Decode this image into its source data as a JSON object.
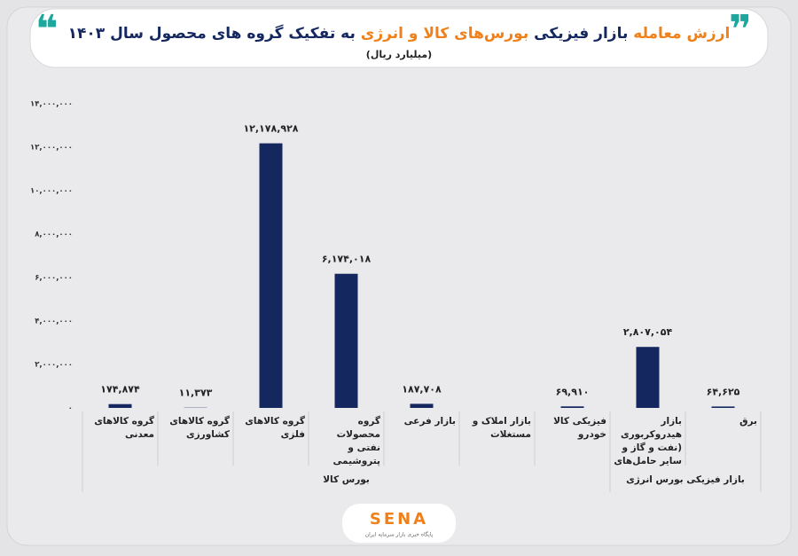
{
  "chart_data": {
    "type": "bar",
    "title_parts": [
      "ارزش معامله",
      "بازار فیزیکی",
      "بورس‌های کالا و انرژی",
      "به تفکیک گروه های محصول سال ۱۴۰۳"
    ],
    "subtitle": "(میلیارد ریال)",
    "categories": [
      "گروه کالاهای معدنی",
      "گروه کالاهای کشاورزی",
      "گروه کالاهای فلزی",
      "گروه محصولات نفتی و پتروشیمی",
      "بازار فرعی",
      "بازار املاک و مستغلات",
      "فیزیکی کالا خودرو",
      "بازار هیدروکربوری (نفت و گاز و سایر حامل‌های انرژی)",
      "برق"
    ],
    "values": [
      174874,
      11373,
      12178928,
      6174018,
      187708,
      null,
      69910,
      2807054,
      64625
    ],
    "value_labels": [
      "۱۷۴,۸۷۴",
      "۱۱,۳۷۳",
      "۱۲,۱۷۸,۹۲۸",
      "۶,۱۷۴,۰۱۸",
      "۱۸۷,۷۰۸",
      null,
      "۶۹,۹۱۰",
      "۲,۸۰۷,۰۵۴",
      "۶۴,۶۲۵"
    ],
    "color": "#14275f",
    "groups": [
      "بورس کالا",
      "بازار فیزیکی بورس انرژی"
    ],
    "ylim": [
      0,
      14000000
    ],
    "yticks": [
      {
        "value": 0,
        "label": "۰"
      },
      {
        "value": 2000000,
        "label": "۲,۰۰۰,۰۰۰"
      },
      {
        "value": 4000000,
        "label": "۴,۰۰۰,۰۰۰"
      },
      {
        "value": 6000000,
        "label": "۶,۰۰۰,۰۰۰"
      },
      {
        "value": 8000000,
        "label": "۸,۰۰۰,۰۰۰"
      },
      {
        "value": 10000000,
        "label": "۱۰,۰۰۰,۰۰۰"
      },
      {
        "value": 12000000,
        "label": "۱۲,۰۰۰,۰۰۰"
      },
      {
        "value": 14000000,
        "label": "۱۴,۰۰۰,۰۰۰"
      }
    ],
    "grid": false,
    "logo": "SENA",
    "logo_caption": "پایگاه خبری بازار سرمایه ایران"
  }
}
